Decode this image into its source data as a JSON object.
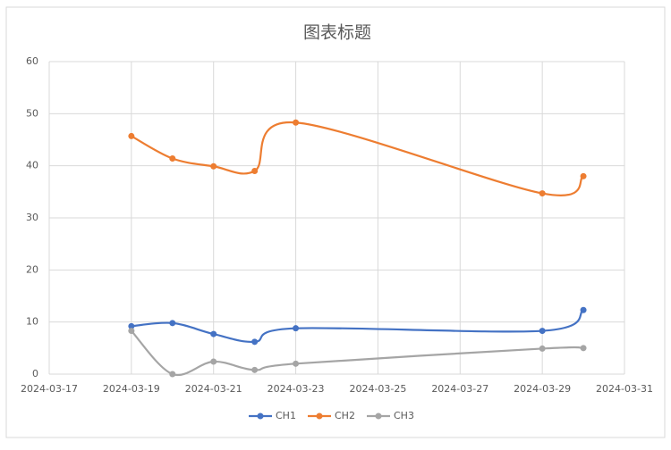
{
  "chart_data": {
    "type": "line",
    "title": "图表标题",
    "x": [
      "2024-03-19",
      "2024-03-20",
      "2024-03-21",
      "2024-03-22",
      "2024-03-23",
      "2024-03-29",
      "2024-03-30"
    ],
    "series": [
      {
        "name": "CH1",
        "color": "#4472c4",
        "values": [
          9.2,
          9.8,
          7.7,
          6.2,
          8.8,
          8.3,
          12.3
        ]
      },
      {
        "name": "CH2",
        "color": "#ed7d31",
        "values": [
          45.7,
          41.4,
          39.9,
          39.0,
          48.3,
          34.7,
          38.0
        ]
      },
      {
        "name": "CH3",
        "color": "#a5a5a5",
        "values": [
          8.3,
          0,
          2.4,
          0.8,
          2.0,
          4.9,
          5.0
        ]
      }
    ],
    "xlim": [
      "2024-03-17",
      "2024-03-31"
    ],
    "xticks": [
      "2024-03-17",
      "2024-03-19",
      "2024-03-21",
      "2024-03-23",
      "2024-03-25",
      "2024-03-27",
      "2024-03-29",
      "2024-03-31"
    ],
    "ylim": [
      0,
      60
    ],
    "yticks": [
      0,
      10,
      20,
      30,
      40,
      50,
      60
    ],
    "grid": true,
    "smooth": true,
    "legend": "bottom"
  }
}
